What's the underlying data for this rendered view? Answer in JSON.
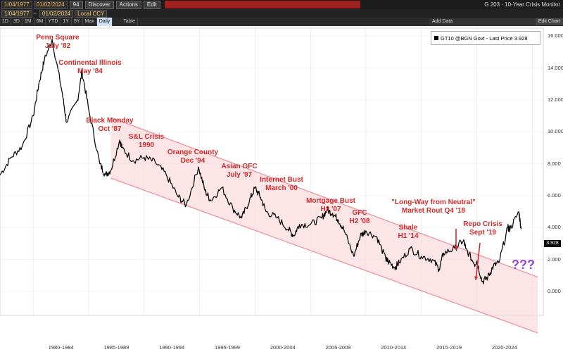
{
  "toolbar": {
    "start_date": "1/04/1977",
    "end_date": "01/02/2024",
    "currency": "Local CCY",
    "discover_label": "Discover",
    "discover_prefix": "94",
    "actions_label": "Actions",
    "edit_label": "Edit",
    "window_title": "G 203 · 10-Year Crisis Monitor"
  },
  "tabs": [
    "1D",
    "3D",
    "1M",
    "6M",
    "YTD",
    "1Y",
    "5Y",
    "Max",
    "Daily"
  ],
  "active_tab": "Daily",
  "table_label": "Table",
  "right_panel": {
    "add_data": "Add Data",
    "edit_chart": "Edit Chart"
  },
  "legend": {
    "label": "GT10 @BGN Govt - Last Price 3.928"
  },
  "price_tag": "3.928",
  "colors": {
    "line": "#000000",
    "channel": "#f9dcde",
    "channel_edge": "#ef9aa2",
    "annotation": "#d42a2a",
    "question": "#9b42d6",
    "arrow": "#d42a2a"
  },
  "annotations": [
    {
      "lines": [
        "Penn Square",
        "July '82"
      ]
    },
    {
      "lines": [
        "Continental Illinois",
        "May '84"
      ]
    },
    {
      "lines": [
        "Black Monday",
        "Oct '87"
      ]
    },
    {
      "lines": [
        "S&L Crisis",
        "1990"
      ]
    },
    {
      "lines": [
        "Orange County",
        "Dec '94"
      ]
    },
    {
      "lines": [
        "Asian GFC",
        "July '97"
      ]
    },
    {
      "lines": [
        "Internet Bust",
        "March '00"
      ]
    },
    {
      "lines": [
        "Mortgage Bust",
        "H2 '07"
      ]
    },
    {
      "lines": [
        "GFC",
        "H2 '08"
      ]
    },
    {
      "lines": [
        "Shale",
        "H1 '14"
      ]
    },
    {
      "lines": [
        "\"Long-Way from Neutral\"",
        "Market Rout Q4 '18"
      ]
    },
    {
      "lines": [
        "Repo Crisis",
        "Sept '19"
      ]
    }
  ],
  "question_marks": "???",
  "chart_data": {
    "type": "line",
    "title": "",
    "series": [
      {
        "name": "GT10 @BGN Govt - Last Price",
        "x": [
          1977.0,
          1978.0,
          1979.0,
          1980.0,
          1980.5,
          1981.0,
          1981.7,
          1982.6,
          1983.0,
          1984.0,
          1984.4,
          1985.0,
          1986.0,
          1986.5,
          1987.0,
          1987.8,
          1988.0,
          1989.0,
          1990.0,
          1991.0,
          1992.0,
          1993.0,
          1993.8,
          1994.9,
          1995.5,
          1996.0,
          1997.0,
          1998.0,
          1998.8,
          1999.5,
          2000.0,
          2000.5,
          2001.0,
          2002.0,
          2003.0,
          2003.5,
          2004.0,
          2005.0,
          2006.0,
          2006.5,
          2007.0,
          2007.5,
          2008.0,
          2008.9,
          2009.5,
          2010.0,
          2011.0,
          2011.8,
          2012.0,
          2012.6,
          2013.0,
          2014.0,
          2015.0,
          2016.0,
          2016.6,
          2017.0,
          2018.0,
          2018.8,
          2019.0,
          2019.8,
          2020.0,
          2020.5,
          2021.0,
          2021.5,
          2022.0,
          2022.8,
          2023.0,
          2023.8,
          2024.0
        ],
        "values": [
          7.3,
          8.4,
          9.1,
          11.0,
          13.0,
          14.5,
          15.8,
          12.5,
          10.6,
          12.0,
          13.8,
          11.4,
          8.0,
          7.3,
          7.6,
          9.5,
          9.0,
          8.2,
          8.4,
          8.1,
          7.3,
          6.0,
          5.4,
          7.8,
          6.3,
          5.7,
          6.5,
          5.2,
          4.6,
          5.7,
          6.5,
          5.9,
          5.0,
          4.6,
          3.9,
          3.5,
          4.2,
          4.2,
          4.6,
          5.1,
          4.9,
          4.5,
          3.9,
          2.2,
          3.5,
          3.8,
          3.4,
          2.0,
          1.9,
          1.5,
          1.8,
          2.7,
          2.2,
          2.0,
          1.4,
          2.4,
          2.7,
          3.2,
          2.7,
          1.7,
          1.9,
          0.6,
          0.9,
          1.6,
          1.8,
          4.0,
          3.9,
          5.0,
          3.9
        ]
      }
    ],
    "xlabel": "",
    "ylabel": "",
    "x_tick_labels": [
      "1980-1984",
      "1985-1989",
      "1990-1994",
      "1995-1999",
      "2000-2004",
      "2005-2009",
      "2010-2014",
      "2015-2019",
      "2020-2024"
    ],
    "y_tick_labels": [
      "0.000",
      "2.000",
      "4.000",
      "6.000",
      "8.000",
      "10.000",
      "12.000",
      "14.000",
      "16.000"
    ],
    "ylim": [
      -1.5,
      16.5
    ],
    "xlim": [
      1977.0,
      2026.0
    ],
    "channel": {
      "upper": [
        [
          1987.0,
          10.9
        ],
        [
          2025.5,
          0.9
        ]
      ],
      "lower": [
        [
          1987.0,
          7.1
        ],
        [
          2025.5,
          -2.6
        ]
      ]
    },
    "grid": true,
    "legend": "top-right"
  }
}
